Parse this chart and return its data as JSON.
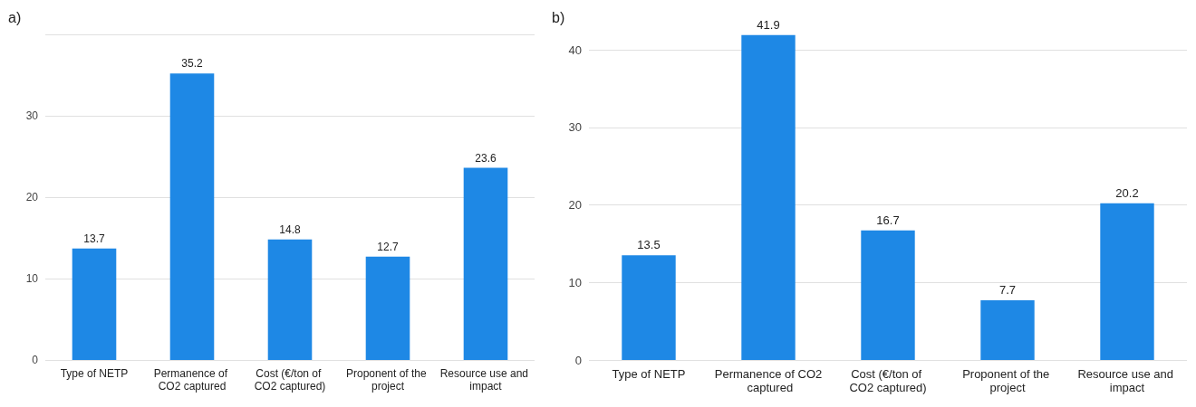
{
  "chart_data": [
    {
      "type": "bar",
      "title": "a)",
      "categories": [
        "Type of NETP",
        "Permanence of CO2 captured",
        "Cost (€/ton of CO2 captured)",
        "Proponent of the project",
        "Resource use and impact"
      ],
      "values": [
        13.7,
        35.2,
        14.8,
        12.7,
        23.6
      ],
      "color": "#1e88e5",
      "ylim": [
        0,
        40
      ],
      "yticks": [
        0,
        10,
        20,
        30,
        {
          "value": 40,
          "label": null
        }
      ],
      "grid": "y",
      "data_labels": true
    },
    {
      "type": "bar",
      "title": "b)",
      "categories": [
        "Type of NETP",
        "Permanence of CO2 captured",
        "Cost (€/ton of CO2 captured)",
        "Proponent of the project",
        "Resource use and impact"
      ],
      "values": [
        13.5,
        41.9,
        16.7,
        7.7,
        20.2
      ],
      "color": "#1e88e5",
      "ylim": [
        0,
        42
      ],
      "yticks": [
        0,
        10,
        20,
        30,
        40
      ],
      "grid": "y",
      "data_labels": true
    }
  ]
}
